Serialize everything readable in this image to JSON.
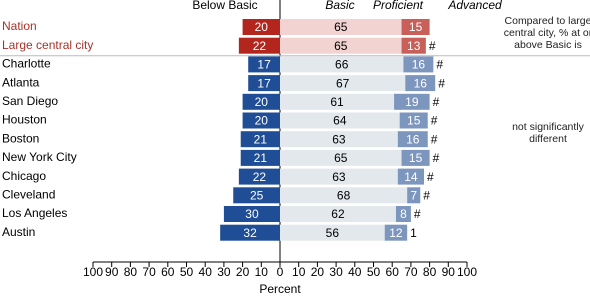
{
  "chart_data": {
    "type": "diverging-bar",
    "xlabel": "Percent",
    "categories": [
      "Nation",
      "Large central city",
      "Charlotte",
      "Atlanta",
      "San Diego",
      "Houston",
      "Boston",
      "New York City",
      "Chicago",
      "Cleveland",
      "Los Angeles",
      "Austin"
    ],
    "highlighted": [
      true,
      true,
      false,
      false,
      false,
      false,
      false,
      false,
      false,
      false,
      false,
      false
    ],
    "series": [
      {
        "name": "Below Basic",
        "color": "#1f4e96",
        "highlight_color": "#b3261e",
        "direction": "left",
        "values": [
          20,
          22,
          17,
          17,
          20,
          20,
          21,
          21,
          22,
          25,
          30,
          32
        ]
      },
      {
        "name": "Basic",
        "color": "#e3e8ec",
        "highlight_color": "#f2d3d1",
        "direction": "right",
        "values": [
          65,
          65,
          66,
          67,
          61,
          64,
          63,
          65,
          63,
          68,
          62,
          56
        ]
      },
      {
        "name": "Proficient",
        "color": "#7d96be",
        "highlight_color": "#c85f59",
        "direction": "right",
        "values": [
          15,
          13,
          16,
          16,
          19,
          15,
          16,
          15,
          14,
          7,
          8,
          12
        ]
      }
    ],
    "advanced_header": "Advanced",
    "significance": [
      "",
      "#",
      "#",
      "#",
      "#",
      "#",
      "#",
      "#",
      "#",
      "#",
      "#",
      "1"
    ],
    "note_top": "Compared to large central city, % at or above Basic is",
    "note_mid": "not significantly different",
    "xlim": [
      -100,
      100
    ],
    "xticks": [
      {
        "value": -100,
        "label": "100"
      },
      {
        "value": -90,
        "label": "90"
      },
      {
        "value": -80,
        "label": "80"
      },
      {
        "value": -70,
        "label": "70"
      },
      {
        "value": -60,
        "label": "60"
      },
      {
        "value": -50,
        "label": "50"
      },
      {
        "value": -40,
        "label": "40"
      },
      {
        "value": -30,
        "label": "30"
      },
      {
        "value": -20,
        "label": "20"
      },
      {
        "value": -10,
        "label": "10"
      },
      0,
      10,
      20,
      30,
      40,
      50,
      60,
      70,
      80,
      90,
      100
    ]
  }
}
